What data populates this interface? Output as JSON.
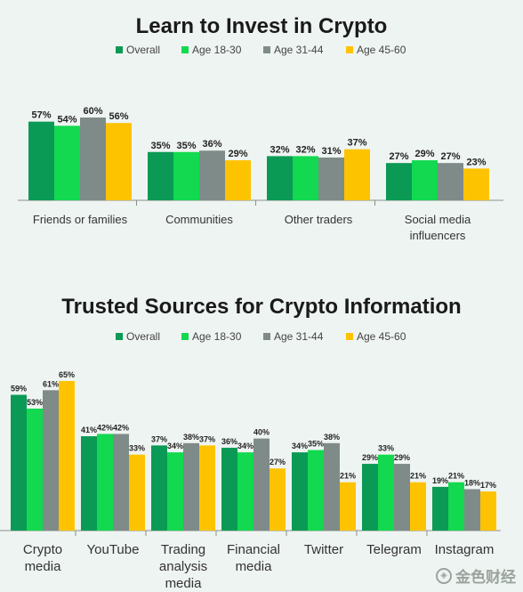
{
  "colors": {
    "Overall": "#0a9a55",
    "Age 18-30": "#12d94f",
    "Age 31-44": "#7f8b88",
    "Age 45-60": "#fec300",
    "background": "#eef4f1",
    "axis": "#8a8f8c"
  },
  "chart_data": [
    {
      "type": "bar",
      "title": "Learn to Invest in Crypto",
      "legend": [
        "Overall",
        "Age 18-30",
        "Age 31-44",
        "Age 45-60"
      ],
      "legend_position": "top",
      "categories": [
        "Friends or families",
        "Communities",
        "Other traders",
        "Social media influencers"
      ],
      "series": [
        {
          "name": "Overall",
          "values": [
            57,
            35,
            32,
            27
          ]
        },
        {
          "name": "Age 18-30",
          "values": [
            54,
            35,
            32,
            29
          ]
        },
        {
          "name": "Age 31-44",
          "values": [
            60,
            36,
            31,
            27
          ]
        },
        {
          "name": "Age 45-60",
          "values": [
            56,
            29,
            37,
            23
          ]
        }
      ],
      "value_suffix": "%",
      "ylim": [
        0,
        60
      ],
      "grid": false
    },
    {
      "type": "bar",
      "title": "Trusted Sources for Crypto Information",
      "legend": [
        "Overall",
        "Age 18-30",
        "Age 31-44",
        "Age 45-60"
      ],
      "legend_position": "top",
      "categories": [
        "Crypto media",
        "YouTube",
        "Trading analysis media",
        "Financial media",
        "Twitter",
        "Telegram",
        "Instagram"
      ],
      "series": [
        {
          "name": "Overall",
          "values": [
            59,
            41,
            37,
            36,
            34,
            29,
            19
          ]
        },
        {
          "name": "Age 18-30",
          "values": [
            53,
            42,
            34,
            34,
            35,
            33,
            21
          ]
        },
        {
          "name": "Age 31-44",
          "values": [
            61,
            42,
            38,
            40,
            38,
            29,
            18
          ]
        },
        {
          "name": "Age 45-60",
          "values": [
            65,
            33,
            37,
            27,
            21,
            21,
            17
          ]
        }
      ],
      "value_suffix": "%",
      "ylim": [
        0,
        65
      ],
      "grid": false
    }
  ],
  "watermark": {
    "text": "金色财经"
  }
}
